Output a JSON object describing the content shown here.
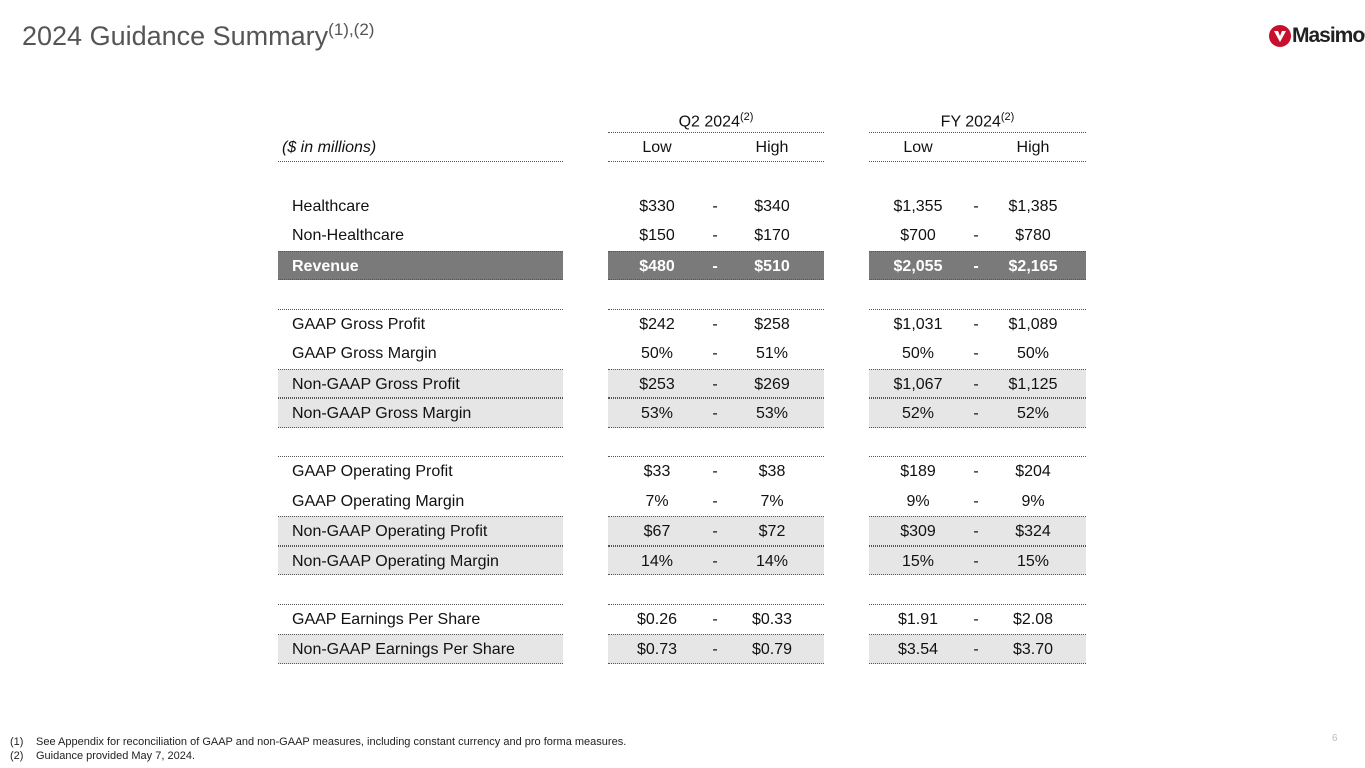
{
  "header": {
    "title": "2024 Guidance Summary",
    "title_note": "(1),(2)",
    "logo": "Masimo",
    "logo_mark": "®"
  },
  "table": {
    "groups": [
      {
        "label": "Q2 2024",
        "note": "(2)"
      },
      {
        "label": "FY 2024",
        "note": "(2)"
      }
    ],
    "unit": "($ in millions)",
    "columns": [
      "Low",
      "High",
      "Low",
      "High"
    ],
    "separator": "-",
    "sections": [
      [
        {
          "label": "Healthcare",
          "q2": [
            "$330",
            "$340"
          ],
          "fy": [
            "$1,355",
            "$1,385"
          ]
        },
        {
          "label": "Non-Healthcare",
          "q2": [
            "$150",
            "$170"
          ],
          "fy": [
            "$700",
            "$780"
          ]
        },
        {
          "label": "Revenue",
          "q2": [
            "$480",
            "$510"
          ],
          "fy": [
            "$2,055",
            "$2,165"
          ]
        }
      ],
      [
        {
          "label": "GAAP Gross Profit",
          "q2": [
            "$242",
            "$258"
          ],
          "fy": [
            "$1,031",
            "$1,089"
          ]
        },
        {
          "label": "GAAP Gross Margin",
          "q2": [
            "50%",
            "51%"
          ],
          "fy": [
            "50%",
            "50%"
          ]
        },
        {
          "label": "Non-GAAP Gross Profit",
          "q2": [
            "$253",
            "$269"
          ],
          "fy": [
            "$1,067",
            "$1,125"
          ]
        },
        {
          "label": "Non-GAAP Gross Margin",
          "q2": [
            "53%",
            "53%"
          ],
          "fy": [
            "52%",
            "52%"
          ]
        }
      ],
      [
        {
          "label": "GAAP Operating Profit",
          "q2": [
            "$33",
            "$38"
          ],
          "fy": [
            "$189",
            "$204"
          ]
        },
        {
          "label": "GAAP Operating Margin",
          "q2": [
            "7%",
            "7%"
          ],
          "fy": [
            "9%",
            "9%"
          ]
        },
        {
          "label": "Non-GAAP Operating Profit",
          "q2": [
            "$67",
            "$72"
          ],
          "fy": [
            "$309",
            "$324"
          ]
        },
        {
          "label": "Non-GAAP Operating Margin",
          "q2": [
            "14%",
            "14%"
          ],
          "fy": [
            "15%",
            "15%"
          ]
        }
      ],
      [
        {
          "label": "GAAP Earnings Per Share",
          "q2": [
            "$0.26",
            "$0.33"
          ],
          "fy": [
            "$1.91",
            "$2.08"
          ]
        },
        {
          "label": "Non-GAAP Earnings Per Share",
          "q2": [
            "$0.73",
            "$0.79"
          ],
          "fy": [
            "$3.54",
            "$3.70"
          ]
        }
      ]
    ]
  },
  "footnotes": [
    {
      "marker": "(1)",
      "text": "See Appendix for reconciliation of GAAP and non-GAAP measures, including constant currency and pro forma measures."
    },
    {
      "marker": "(2)",
      "text": "Guidance provided May 7, 2024."
    }
  ],
  "page_number": "6"
}
